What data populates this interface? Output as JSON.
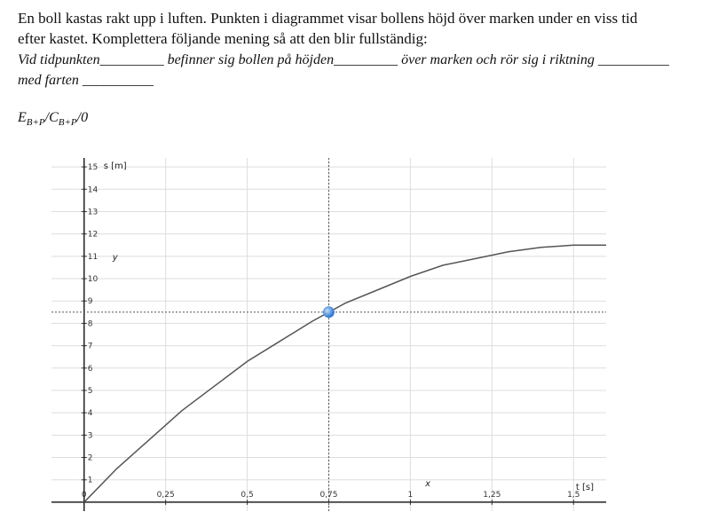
{
  "intro_lines": [
    "En boll kastas rakt upp i luften. Punkten i diagrammet visar bollens höjd över marken under en viss tid",
    "efter kastet. Komplettera följande mening så att den blir fullständig:"
  ],
  "sentence_lines": [
    "Vid tidpunkten_________ befinner sig bollen på höjden_________ över marken och rör sig i riktning __________",
    "med farten __________"
  ],
  "score": [
    "E",
    "B+P",
    "/C",
    "B+P",
    "/0"
  ],
  "chart_data": {
    "type": "line",
    "x_label": "t [s]",
    "y_label": "s [m]",
    "x_name": "x",
    "y_name": "y",
    "x": [
      0,
      0.1,
      0.2,
      0.3,
      0.4,
      0.5,
      0.6,
      0.7,
      0.8,
      0.9,
      1.0,
      1.1,
      1.2,
      1.3,
      1.4,
      1.5,
      1.6
    ],
    "series": [
      {
        "color": "#555555",
        "values": [
          0,
          1.5,
          2.8,
          4.1,
          5.2,
          6.3,
          7.2,
          8.1,
          8.9,
          9.5,
          10.1,
          10.6,
          10.9,
          11.2,
          11.4,
          11.5,
          11.5
        ]
      }
    ],
    "point": {
      "x": 0.75,
      "y": 8.5,
      "color": "#4a90e2"
    },
    "xlim": [
      -0.1,
      1.6
    ],
    "ylim": [
      -0.4,
      15.4
    ],
    "xticks": [
      0,
      {
        "value": 0.25,
        "label": "0,25"
      },
      {
        "value": 0.5,
        "label": "0,5"
      },
      {
        "value": 0.75,
        "label": "0,75"
      },
      1,
      {
        "value": 1.25,
        "label": "1,25"
      },
      {
        "value": 1.5,
        "label": "1,5"
      }
    ],
    "yticks": [
      1,
      2,
      3,
      4,
      5,
      6,
      7,
      8,
      9,
      10,
      11,
      12,
      13,
      14,
      15
    ],
    "grid": true
  }
}
